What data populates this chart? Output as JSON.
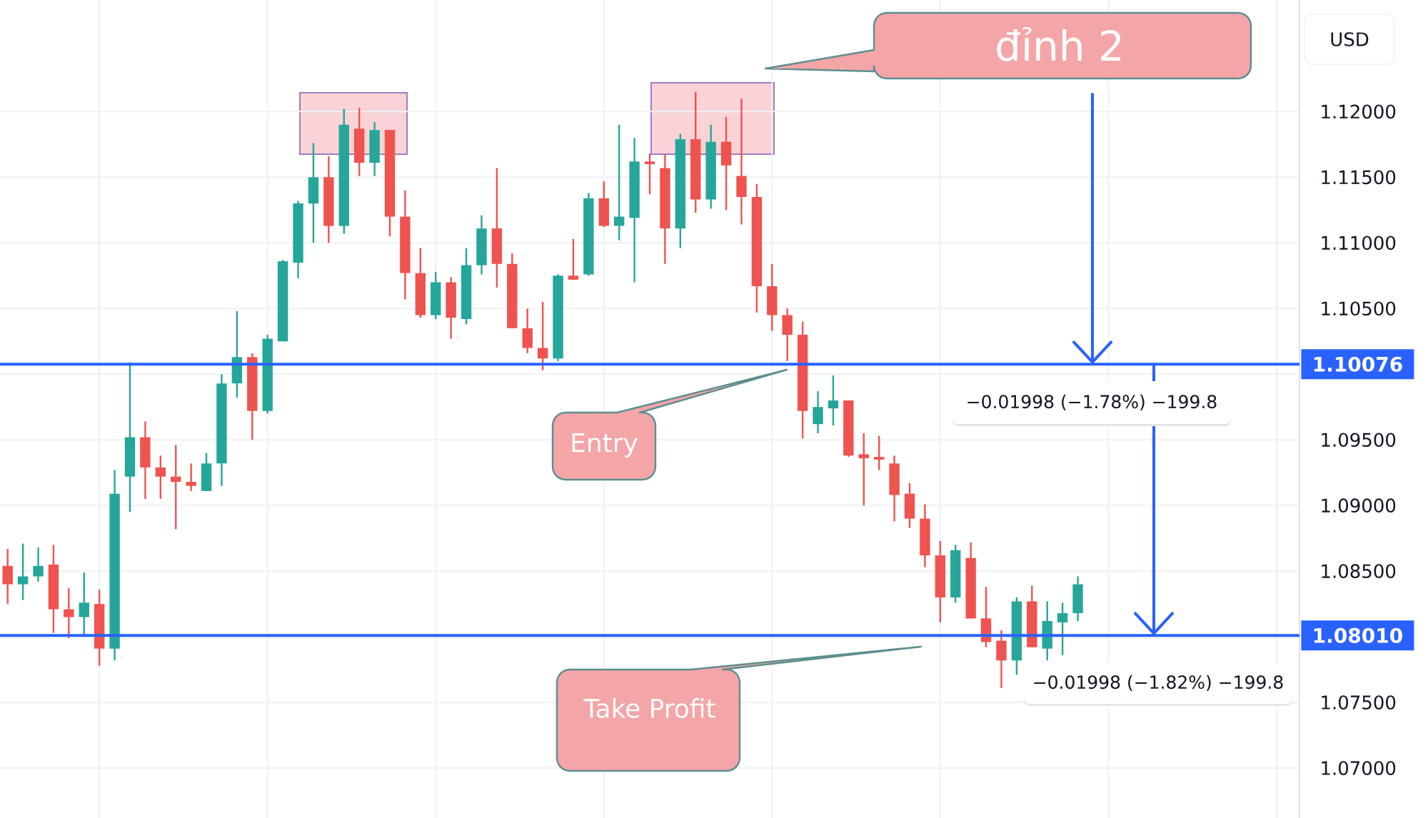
{
  "chart_data": {
    "type": "candlestick",
    "ylabel": "USD",
    "categories": [
      null,
      null,
      null,
      null,
      null,
      null,
      null,
      null,
      null,
      null,
      null,
      null,
      null,
      null,
      null,
      null,
      null,
      null,
      null,
      null,
      null,
      null,
      null,
      null,
      null,
      null,
      null,
      null,
      null,
      null,
      null,
      null,
      null,
      null,
      null,
      null,
      null,
      null,
      null,
      null,
      null,
      null,
      null,
      null,
      null,
      null,
      null,
      null,
      null,
      null,
      null,
      null,
      null,
      null,
      null,
      null,
      null,
      null,
      null,
      null,
      null,
      null,
      null,
      null,
      null,
      null,
      null,
      null,
      null,
      null,
      null,
      null,
      null,
      null,
      null,
      null,
      null,
      null,
      null,
      null,
      null,
      null,
      null,
      null,
      null
    ],
    "ohlc": [
      [
        1.0854,
        1.0867,
        1.0825,
        1.084
      ],
      [
        1.084,
        1.0871,
        1.0828,
        1.0846
      ],
      [
        1.0846,
        1.0868,
        1.0842,
        1.0854
      ],
      [
        1.0855,
        1.087,
        1.0803,
        1.0821
      ],
      [
        1.0821,
        1.0837,
        1.0799,
        1.0815
      ],
      [
        1.0815,
        1.0849,
        1.0802,
        1.0826
      ],
      [
        1.0825,
        1.0836,
        1.0778,
        1.0791
      ],
      [
        1.0791,
        1.0927,
        1.0782,
        1.0909
      ],
      [
        1.0922,
        1.1009,
        1.0895,
        1.0952
      ],
      [
        1.0952,
        1.0964,
        1.0905,
        1.0929
      ],
      [
        1.0929,
        1.0938,
        1.0905,
        1.0922
      ],
      [
        1.0922,
        1.0946,
        1.0882,
        1.0918
      ],
      [
        1.0918,
        1.0932,
        1.0911,
        1.0915
      ],
      [
        1.0911,
        1.094,
        1.0911,
        1.0932
      ],
      [
        1.0932,
        1.1,
        1.0915,
        1.0993
      ],
      [
        1.0993,
        1.1048,
        1.0982,
        1.1013
      ],
      [
        1.1013,
        1.1016,
        1.095,
        1.0972
      ],
      [
        1.0972,
        1.103,
        1.097,
        1.1027
      ],
      [
        1.1025,
        1.1087,
        1.1025,
        1.1086
      ],
      [
        1.1085,
        1.1132,
        1.1073,
        1.113
      ],
      [
        1.113,
        1.1176,
        1.11,
        1.115
      ],
      [
        1.115,
        1.1166,
        1.11,
        1.1113
      ],
      [
        1.1113,
        1.1202,
        1.1107,
        1.119
      ],
      [
        1.1187,
        1.1203,
        1.1151,
        1.1161
      ],
      [
        1.1161,
        1.1192,
        1.1151,
        1.1186
      ],
      [
        1.1186,
        1.1186,
        1.1105,
        1.112
      ],
      [
        1.112,
        1.114,
        1.1057,
        1.1077
      ],
      [
        1.1077,
        1.1096,
        1.1043,
        1.1045
      ],
      [
        1.1045,
        1.1078,
        1.1042,
        1.107
      ],
      [
        1.107,
        1.1074,
        1.1027,
        1.1043
      ],
      [
        1.1042,
        1.1096,
        1.1038,
        1.1083
      ],
      [
        1.1083,
        1.1121,
        1.1076,
        1.1111
      ],
      [
        1.1111,
        1.1157,
        1.1066,
        1.1084
      ],
      [
        1.1084,
        1.1092,
        1.1035,
        1.1035
      ],
      [
        1.1035,
        1.105,
        1.1016,
        1.102
      ],
      [
        1.102,
        1.1055,
        1.1003,
        1.1012
      ],
      [
        1.1012,
        1.1076,
        1.101,
        1.1075
      ],
      [
        1.1075,
        1.1103,
        1.1072,
        1.1072
      ],
      [
        1.1076,
        1.1138,
        1.1075,
        1.1134
      ],
      [
        1.1134,
        1.1147,
        1.1112,
        1.1113
      ],
      [
        1.1113,
        1.119,
        1.1102,
        1.112
      ],
      [
        1.1119,
        1.118,
        1.107,
        1.1162
      ],
      [
        1.1162,
        1.1168,
        1.1137,
        1.116
      ],
      [
        1.1157,
        1.1167,
        1.1084,
        1.1111
      ],
      [
        1.1111,
        1.1183,
        1.1096,
        1.1179
      ],
      [
        1.1179,
        1.1215,
        1.1123,
        1.1133
      ],
      [
        1.1133,
        1.119,
        1.1126,
        1.1177
      ],
      [
        1.1177,
        1.1196,
        1.1125,
        1.1159
      ],
      [
        1.1151,
        1.121,
        1.1114,
        1.1135
      ],
      [
        1.1135,
        1.1145,
        1.1047,
        1.1067
      ],
      [
        1.1067,
        1.1084,
        1.1033,
        1.1045
      ],
      [
        1.1045,
        1.105,
        1.101,
        1.103
      ],
      [
        1.103,
        1.104,
        1.0951,
        1.0972
      ],
      [
        1.0962,
        1.0987,
        1.0955,
        1.0975
      ],
      [
        1.0974,
        1.0999,
        1.0961,
        1.098
      ],
      [
        1.098,
        1.098,
        1.0937,
        1.0938
      ],
      [
        1.0939,
        1.0955,
        1.09,
        1.0936
      ],
      [
        1.0937,
        1.0953,
        1.0927,
        1.0935
      ],
      [
        1.0932,
        1.0938,
        1.0888,
        1.0908
      ],
      [
        1.0909,
        1.0917,
        1.0883,
        1.089
      ],
      [
        1.089,
        1.0901,
        1.0853,
        1.0862
      ],
      [
        1.0862,
        1.0873,
        1.0811,
        1.083
      ],
      [
        1.083,
        1.087,
        1.0826,
        1.0866
      ],
      [
        1.086,
        1.0872,
        1.0814,
        1.0814
      ],
      [
        1.0814,
        1.0838,
        1.0792,
        1.0796
      ],
      [
        1.0797,
        1.0805,
        1.0761,
        1.0782
      ],
      [
        1.0782,
        1.083,
        1.0771,
        1.0827
      ],
      [
        1.0827,
        1.0839,
        1.0792,
        1.0792
      ],
      [
        1.0791,
        1.0827,
        1.0782,
        1.0812
      ],
      [
        1.0811,
        1.0826,
        1.0786,
        1.0818
      ],
      [
        1.0818,
        1.0846,
        1.0812,
        1.084
      ],
      null,
      null,
      null,
      null,
      null,
      null,
      null,
      null,
      null,
      null,
      null,
      null,
      null,
      null
    ],
    "colors": [
      "#ef5350",
      "#26a69a",
      "#26a69a",
      "#ef5350",
      "#ef5350",
      "#26a69a",
      "#ef5350",
      "#26a69a",
      "#26a69a",
      "#ef5350",
      "#ef5350",
      "#ef5350",
      "#ef5350",
      "#26a69a",
      "#26a69a",
      "#26a69a",
      "#ef5350",
      "#26a69a",
      "#26a69a",
      "#26a69a",
      "#26a69a",
      "#ef5350",
      "#26a69a",
      "#ef5350",
      "#26a69a",
      "#ef5350",
      "#ef5350",
      "#ef5350",
      "#26a69a",
      "#ef5350",
      "#26a69a",
      "#26a69a",
      "#ef5350",
      "#ef5350",
      "#ef5350",
      "#ef5350",
      "#26a69a",
      "#ef5350",
      "#26a69a",
      "#ef5350",
      "#26a69a",
      "#26a69a",
      "#ef5350",
      "#ef5350",
      "#26a69a",
      "#ef5350",
      "#26a69a",
      "#ef5350",
      "#ef5350",
      "#ef5350",
      "#ef5350",
      "#ef5350",
      "#ef5350",
      "#26a69a",
      "#26a69a",
      "#ef5350",
      "#ef5350",
      "#ef5350",
      "#ef5350",
      "#ef5350",
      "#ef5350",
      "#ef5350",
      "#26a69a",
      "#ef5350",
      "#ef5350",
      "#ef5350",
      "#26a69a",
      "#ef5350",
      "#26a69a",
      "#26a69a",
      "#26a69a",
      null,
      null,
      null,
      null,
      null,
      null,
      null,
      null,
      null,
      null,
      null,
      null,
      null,
      null
    ],
    "ylim": [
      1.0662,
      1.1285
    ],
    "yticks": [
      {
        "value": 1.07,
        "label": "1.07000"
      },
      {
        "value": 1.075,
        "label": "1.07500"
      },
      {
        "value": 1.08,
        "label": null
      },
      {
        "value": 1.085,
        "label": "1.08500"
      },
      {
        "value": 1.09,
        "label": "1.09000"
      },
      {
        "value": 1.095,
        "label": "1.09500"
      },
      {
        "value": 1.1,
        "label": null
      },
      {
        "value": 1.105,
        "label": "1.10500"
      },
      {
        "value": 1.11,
        "label": "1.11000"
      },
      {
        "value": 1.115,
        "label": "1.11500"
      },
      {
        "value": 1.12,
        "label": "1.12000"
      }
    ],
    "grid": true,
    "ref_lines": [
      {
        "axis": "y",
        "value": 1.10076,
        "label": "1.10076",
        "color": "#2962ff"
      },
      {
        "axis": "y",
        "value": 1.0801,
        "label": "1.08010",
        "color": "#2962ff"
      }
    ],
    "annotations": [
      "đỉnh 2",
      "Entry",
      "Take Profit",
      "−0.01998 (−1.78%) −199.8",
      "−0.01998 (−1.82%) −199.8"
    ]
  }
}
